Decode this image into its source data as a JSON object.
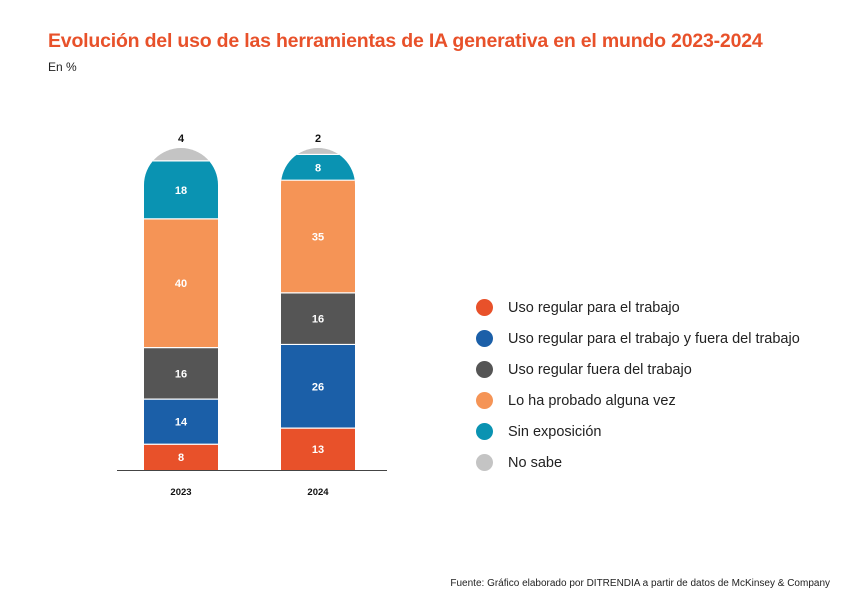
{
  "title": "Evolución del uso de las herramientas de IA generativa en el mundo 2023-2024",
  "subtitle": "En %",
  "source": "Fuente: Gráfico elaborado por DITRENDIA a partir de datos de McKinsey & Company",
  "chart_data": {
    "type": "bar",
    "stacked": true,
    "title": "Evolución del uso de las herramientas de IA generativa en el mundo 2023-2024",
    "subtitle": "En %",
    "categories": [
      "2023",
      "2024"
    ],
    "ylim": [
      0,
      100
    ],
    "grid": false,
    "legend_position": "right",
    "series": [
      {
        "name": "Uso regular para el trabajo",
        "color": "#e8512a",
        "values": [
          8,
          13
        ]
      },
      {
        "name": "Uso regular para el trabajo y fuera del trabajo",
        "color": "#1b5fa8",
        "values": [
          14,
          26
        ]
      },
      {
        "name": "Uso regular fuera del trabajo",
        "color": "#555555",
        "values": [
          16,
          16
        ]
      },
      {
        "name": "Lo ha probado alguna vez",
        "color": "#f59456",
        "values": [
          40,
          35
        ]
      },
      {
        "name": "Sin exposición",
        "color": "#0a93b2",
        "values": [
          18,
          8
        ]
      },
      {
        "name": "No sabe",
        "color": "#c4c4c4",
        "values": [
          4,
          2
        ]
      }
    ]
  }
}
